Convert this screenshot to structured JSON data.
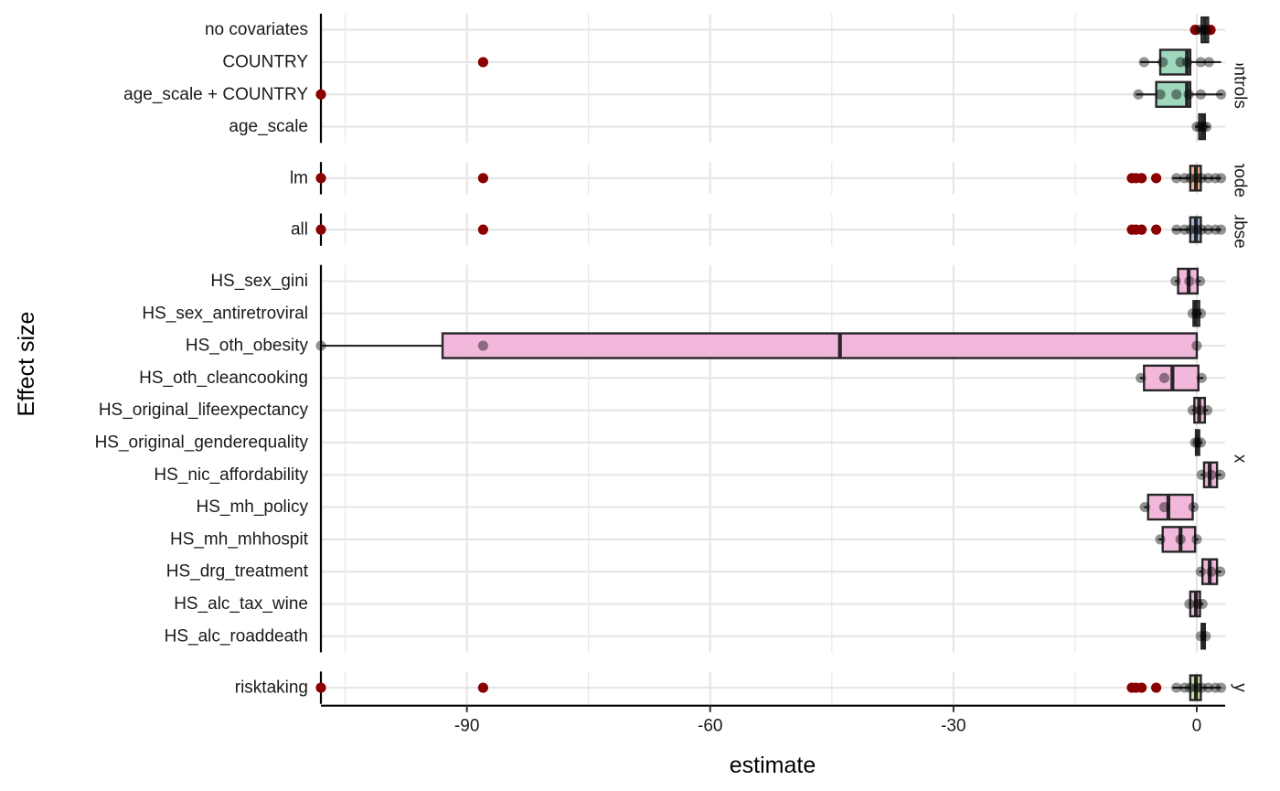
{
  "chart_data": {
    "type": "box",
    "xlabel": "estimate",
    "ylabel": "Effect size",
    "xlim": [
      -108,
      3.5
    ],
    "x_ticks": [
      -90,
      -60,
      -30,
      0
    ],
    "x_tick_labels": [
      "-90",
      "-60",
      "-30",
      "0"
    ],
    "grid": true,
    "legend": "none",
    "colors": {
      "outlier": "#8b0000",
      "controls": "#9fd8bc",
      "model": "#f6b48a",
      "subset": "#a8bce0",
      "x": "#f1b8dc",
      "y": "#cbe7a1",
      "box_stroke": "#262626",
      "grid": "#e6e6e6"
    },
    "panels": [
      {
        "strip": "controls",
        "strip_visible": "controls",
        "fill_key": "controls",
        "rows": [
          {
            "label": "no covariates",
            "q1": 0.6,
            "median": 1.0,
            "q3": 1.4,
            "wmin": 0.2,
            "wmax": 1.8,
            "points": [
              0.3,
              0.7,
              1.0,
              1.2
            ],
            "outliers": [
              -0.2,
              1.7
            ]
          },
          {
            "label": "COUNTRY",
            "q1": -4.5,
            "median": -1.2,
            "q3": -0.8,
            "wmin": -7.0,
            "wmax": 3.0,
            "points": [
              -6.5,
              -4.2,
              -2.0,
              -1.2,
              0.5,
              1.5
            ],
            "outliers": [
              -88.0
            ]
          },
          {
            "label": "age_scale + COUNTRY",
            "q1": -5.0,
            "median": -1.2,
            "q3": -0.8,
            "wmin": -7.5,
            "wmax": 3.2,
            "points": [
              -7.2,
              -4.5,
              -2.5,
              -1.0,
              0.5,
              3.0
            ],
            "outliers": [
              -108.0
            ]
          },
          {
            "label": "age_scale",
            "q1": 0.3,
            "median": 0.7,
            "q3": 1.0,
            "wmin": -0.2,
            "wmax": 1.6,
            "points": [
              0.0,
              0.4,
              0.8,
              1.2
            ],
            "outliers": []
          }
        ]
      },
      {
        "strip": "model",
        "strip_visible": "node",
        "fill_key": "model",
        "rows": [
          {
            "label": "lm",
            "q1": -0.8,
            "median": -0.1,
            "q3": 0.5,
            "wmin": -3.0,
            "wmax": 3.0,
            "points": [
              -2.5,
              -1.5,
              -0.8,
              0.0,
              0.6,
              1.4,
              2.3,
              3.0
            ],
            "outliers": [
              -108.0,
              -88.0,
              -8.0,
              -7.5,
              -6.8,
              -5.0
            ]
          }
        ]
      },
      {
        "strip": "subset",
        "strip_visible": "ubse",
        "fill_key": "subset",
        "rows": [
          {
            "label": "all",
            "q1": -0.8,
            "median": -0.1,
            "q3": 0.5,
            "wmin": -3.0,
            "wmax": 3.0,
            "points": [
              -2.5,
              -1.5,
              -0.8,
              0.0,
              0.6,
              1.4,
              2.3,
              3.0
            ],
            "outliers": [
              -108.0,
              -88.0,
              -8.0,
              -7.5,
              -6.8,
              -5.0
            ]
          }
        ]
      },
      {
        "strip": "x",
        "strip_visible": "x",
        "fill_key": "x",
        "rows": [
          {
            "label": "HS_sex_gini",
            "q1": -2.3,
            "median": -1.0,
            "q3": 0.1,
            "wmin": -2.7,
            "wmax": 0.5,
            "points": [
              -2.6,
              -0.9,
              0.4
            ],
            "outliers": []
          },
          {
            "label": "HS_sex_antiretroviral",
            "q1": -0.4,
            "median": -0.1,
            "q3": 0.3,
            "wmin": -0.6,
            "wmax": 0.6,
            "points": [
              -0.5,
              0.0,
              0.5
            ],
            "outliers": []
          },
          {
            "label": "HS_oth_obesity",
            "q1": -93.0,
            "median": -44.0,
            "q3": 0.0,
            "wmin": -108.0,
            "wmax": 0.0,
            "points": [
              -108.0,
              -88.0,
              0.0
            ],
            "outliers": []
          },
          {
            "label": "HS_oth_cleancooking",
            "q1": -6.5,
            "median": -3.0,
            "q3": 0.2,
            "wmin": -7.0,
            "wmax": 0.8,
            "points": [
              -6.9,
              -4.0,
              0.6
            ],
            "outliers": []
          },
          {
            "label": "HS_original_lifeexpectancy",
            "q1": -0.3,
            "median": 0.3,
            "q3": 1.0,
            "wmin": -0.6,
            "wmax": 1.4,
            "points": [
              -0.5,
              0.4,
              1.3
            ],
            "outliers": []
          },
          {
            "label": "HS_original_genderequality",
            "q1": -0.1,
            "median": 0.1,
            "q3": 0.3,
            "wmin": -0.3,
            "wmax": 0.6,
            "points": [
              -0.2,
              0.1,
              0.5
            ],
            "outliers": []
          },
          {
            "label": "HS_nic_affordability",
            "q1": 0.9,
            "median": 1.6,
            "q3": 2.5,
            "wmin": 0.5,
            "wmax": 3.0,
            "points": [
              0.6,
              1.8,
              2.9
            ],
            "outliers": []
          },
          {
            "label": "HS_mh_policy",
            "q1": -6.0,
            "median": -3.5,
            "q3": -0.5,
            "wmin": -6.5,
            "wmax": -0.2,
            "points": [
              -6.4,
              -4.0,
              -0.4
            ],
            "outliers": []
          },
          {
            "label": "HS_mh_mhhospit",
            "q1": -4.2,
            "median": -2.0,
            "q3": -0.2,
            "wmin": -4.7,
            "wmax": 0.2,
            "points": [
              -4.5,
              -2.0,
              0.0
            ],
            "outliers": []
          },
          {
            "label": "HS_drg_treatment",
            "q1": 0.7,
            "median": 1.6,
            "q3": 2.5,
            "wmin": 0.3,
            "wmax": 3.0,
            "points": [
              0.5,
              1.8,
              2.9
            ],
            "outliers": []
          },
          {
            "label": "HS_alc_tax_wine",
            "q1": -0.8,
            "median": -0.1,
            "q3": 0.4,
            "wmin": -1.0,
            "wmax": 0.8,
            "points": [
              -0.9,
              0.1,
              0.7
            ],
            "outliers": []
          },
          {
            "label": "HS_alc_roaddeath",
            "q1": 0.6,
            "median": 0.8,
            "q3": 1.0,
            "wmin": 0.4,
            "wmax": 1.2,
            "points": [
              0.5,
              1.1
            ],
            "outliers": []
          }
        ]
      },
      {
        "strip": "y",
        "strip_visible": "y",
        "fill_key": "y",
        "rows": [
          {
            "label": "risktaking",
            "q1": -0.8,
            "median": -0.1,
            "q3": 0.5,
            "wmin": -3.0,
            "wmax": 3.0,
            "points": [
              -2.5,
              -1.5,
              -0.8,
              0.0,
              0.6,
              1.4,
              2.3,
              3.0
            ],
            "outliers": [
              -108.0,
              -88.0,
              -8.0,
              -7.5,
              -6.8,
              -5.0
            ]
          }
        ]
      }
    ]
  }
}
